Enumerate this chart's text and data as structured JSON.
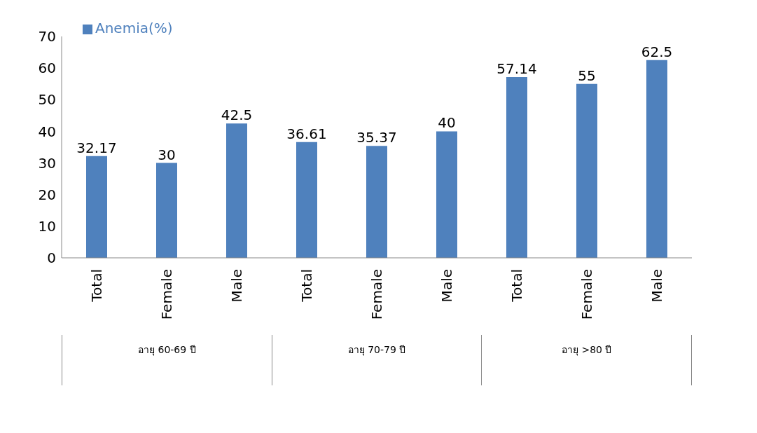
{
  "chart_data": {
    "type": "bar",
    "categories": [
      "Total",
      "Female",
      "Male",
      "Total",
      "Female",
      "Male",
      "Total",
      "Female",
      "Male"
    ],
    "series": [
      {
        "name": "Anemia(%)",
        "color": "#4f81bd",
        "values": [
          32.17,
          30,
          42.5,
          36.61,
          35.37,
          40,
          57.14,
          55,
          62.5
        ]
      }
    ],
    "ylim": [
      0,
      70
    ],
    "yticks": [
      0,
      10,
      20,
      30,
      40,
      50,
      60,
      70
    ],
    "grid": false,
    "legend": "top left",
    "data_labels": true,
    "annotations": [
      "อายุ 60-69 ปี",
      "อายุ 70-79 ปี",
      "อายุ >80 ปี"
    ]
  }
}
